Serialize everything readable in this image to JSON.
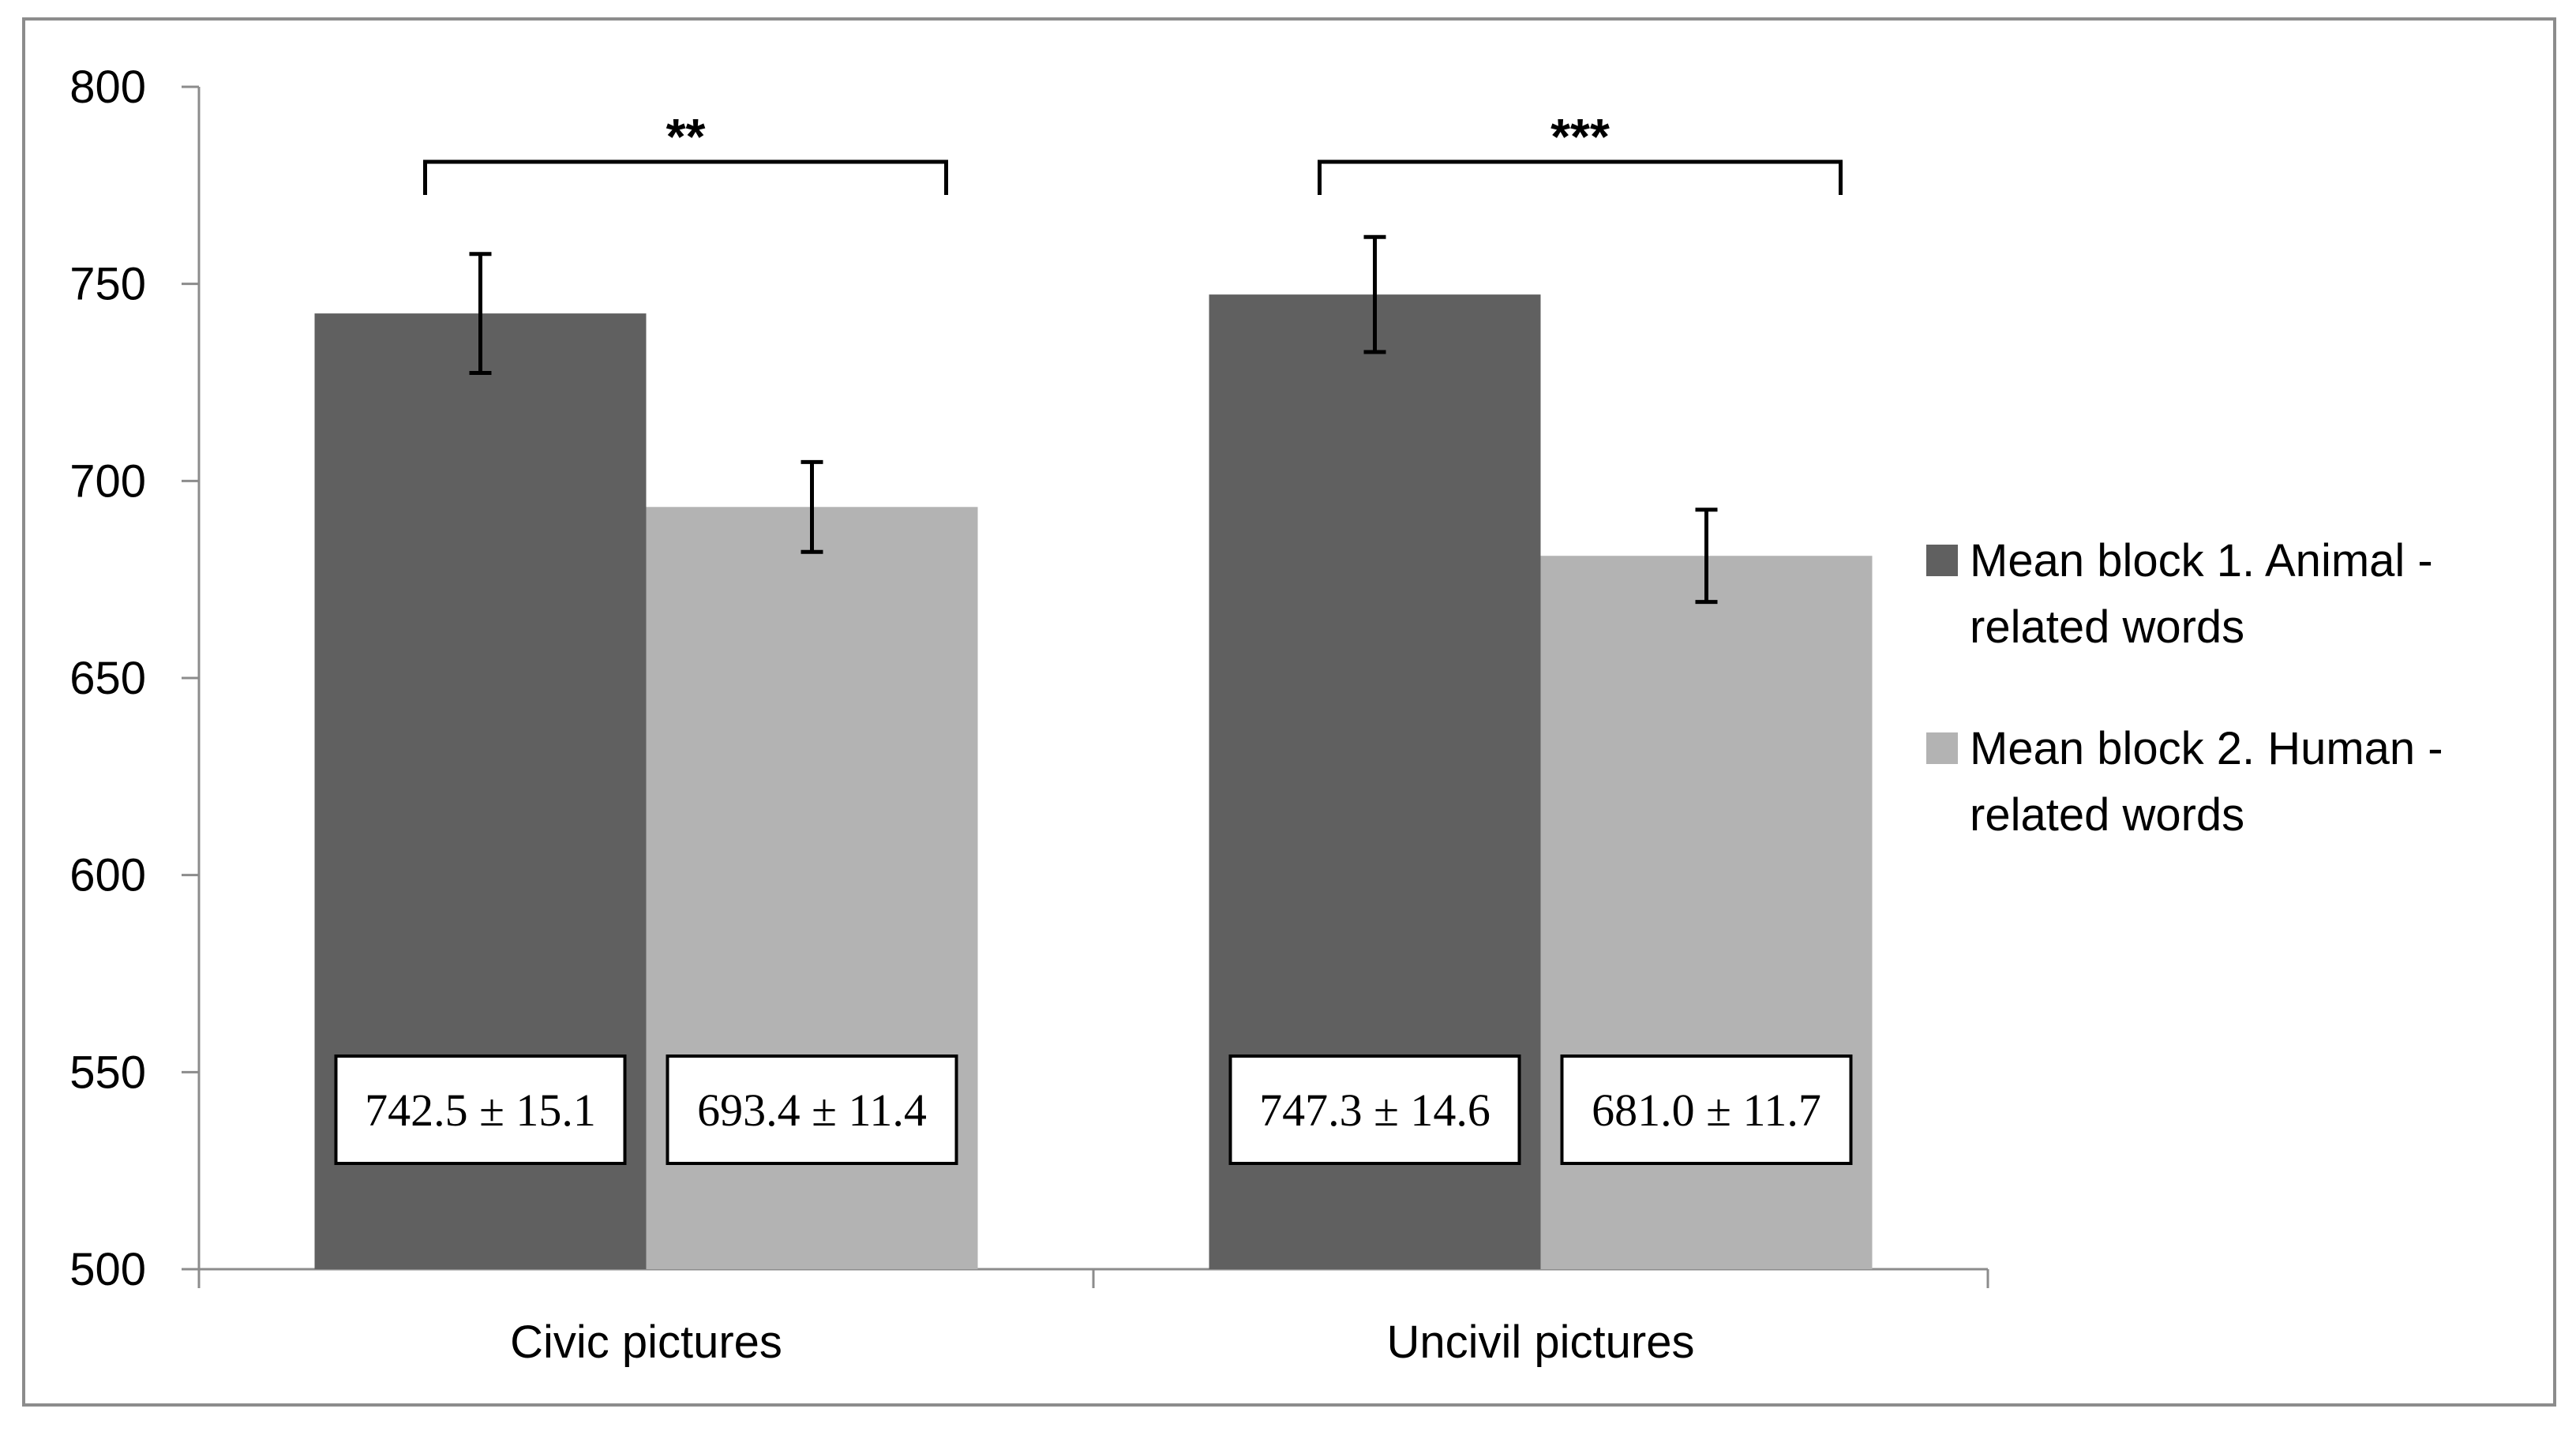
{
  "chart_data": {
    "type": "bar",
    "title": "",
    "xlabel": "",
    "ylabel": "",
    "ylim": [
      500,
      800
    ],
    "yticks": [
      "500",
      "550",
      "600",
      "650",
      "700",
      "750",
      "800"
    ],
    "categories": [
      "Civic pictures",
      "Uncivil pictures"
    ],
    "series": [
      {
        "name": "Mean block 1. Animal - related words",
        "color": "#606060",
        "values": [
          742.5,
          747.3
        ],
        "errors": [
          15.1,
          14.6
        ],
        "labels": [
          "742.5 ± 15.1",
          "747.3 ± 14.6"
        ]
      },
      {
        "name": "Mean block 2. Human - related words",
        "color": "#b3b3b3",
        "values": [
          693.4,
          681.0
        ],
        "errors": [
          11.4,
          11.7
        ],
        "labels": [
          "693.4 ± 11.4",
          "681.0 ± 11.7"
        ]
      }
    ],
    "significance": [
      "**",
      "***"
    ],
    "grid": false,
    "legend_position": "right"
  },
  "legend": {
    "items": [
      {
        "line1": "Mean block 1. Animal -",
        "line2": "related words",
        "color": "#606060"
      },
      {
        "line1": "Mean block 2. Human -",
        "line2": "related words",
        "color": "#b3b3b3"
      }
    ]
  }
}
